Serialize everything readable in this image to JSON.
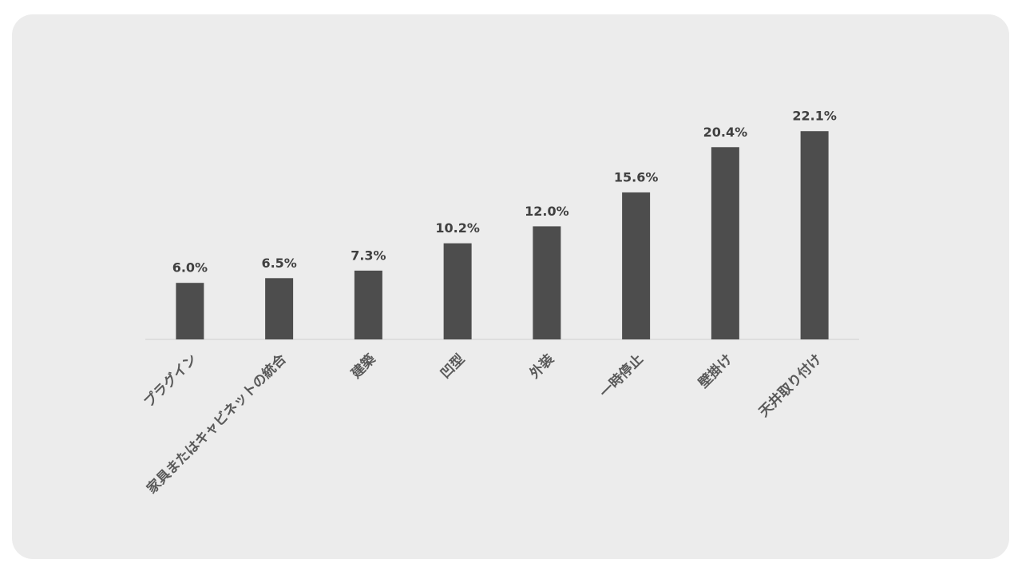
{
  "chart_data": {
    "type": "bar",
    "categories": [
      "プラグイン",
      "家具またはキャビネットの統合",
      "建築",
      "凹型",
      "外装",
      "一時停止",
      "壁掛け",
      "天井取り付け"
    ],
    "values": [
      6.0,
      6.5,
      7.3,
      10.2,
      12.0,
      15.6,
      20.4,
      22.1
    ],
    "value_labels": [
      "6.0%",
      "6.5%",
      "7.3%",
      "10.2%",
      "12.0%",
      "15.6%",
      "20.4%",
      "22.1%"
    ],
    "color": "#4d4d4d",
    "ylim": [
      0,
      25
    ]
  }
}
